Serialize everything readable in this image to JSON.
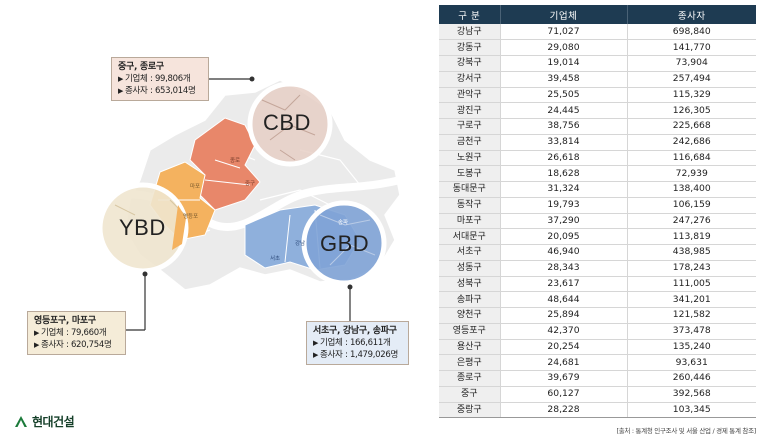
{
  "callouts": {
    "cbd": {
      "title": "중구, 종로구",
      "biz": "기업체 : 99,806개",
      "emp": "종사자 : 653,014명"
    },
    "ybd": {
      "title": "영등포구, 마포구",
      "biz": "기업체 : 79,660개",
      "emp": "종사자 : 620,754명"
    },
    "gbd": {
      "title": "서초구, 강남구, 송파구",
      "biz": "기업체 : 166,611개",
      "emp": "종사자 : 1,479,026명"
    }
  },
  "hubs": {
    "cbd": "CBD",
    "ybd": "YBD",
    "gbd": "GBD"
  },
  "map_labels": {
    "jongno": "종로",
    "junggu": "중구",
    "mapo": "마포",
    "yeongdeungpo": "영등포",
    "gangnam": "강남",
    "seocho": "서초",
    "songpa": "송파"
  },
  "colors": {
    "cbd": "#e8876a",
    "ybd": "#f4b25f",
    "gbd": "#8fb0dc",
    "table_header": "#1e3b52",
    "logo": "#153f29"
  },
  "logo": {
    "text": "현대건설"
  },
  "table": {
    "headers": [
      "구 분",
      "기업체",
      "종사자"
    ],
    "rows": [
      [
        "강남구",
        "71,027",
        "698,840"
      ],
      [
        "강동구",
        "29,080",
        "141,770"
      ],
      [
        "강북구",
        "19,014",
        "73,904"
      ],
      [
        "강서구",
        "39,458",
        "257,494"
      ],
      [
        "관악구",
        "25,505",
        "115,329"
      ],
      [
        "광진구",
        "24,445",
        "126,305"
      ],
      [
        "구로구",
        "38,756",
        "225,668"
      ],
      [
        "금천구",
        "33,814",
        "242,686"
      ],
      [
        "노원구",
        "26,618",
        "116,684"
      ],
      [
        "도봉구",
        "18,628",
        "72,939"
      ],
      [
        "동대문구",
        "31,324",
        "138,400"
      ],
      [
        "동작구",
        "19,793",
        "106,159"
      ],
      [
        "마포구",
        "37,290",
        "247,276"
      ],
      [
        "서대문구",
        "20,095",
        "113,819"
      ],
      [
        "서초구",
        "46,940",
        "438,985"
      ],
      [
        "성동구",
        "28,343",
        "178,243"
      ],
      [
        "성북구",
        "23,617",
        "111,005"
      ],
      [
        "송파구",
        "48,644",
        "341,201"
      ],
      [
        "양천구",
        "25,894",
        "121,582"
      ],
      [
        "영등포구",
        "42,370",
        "373,478"
      ],
      [
        "용산구",
        "20,254",
        "135,240"
      ],
      [
        "은평구",
        "24,681",
        "93,631"
      ],
      [
        "종로구",
        "39,679",
        "260,446"
      ],
      [
        "중구",
        "60,127",
        "392,568"
      ],
      [
        "중랑구",
        "28,228",
        "103,345"
      ]
    ]
  },
  "source": "[출처 : 통계청 인구조사 및 서울 산업 / 경제 통계 참조]"
}
